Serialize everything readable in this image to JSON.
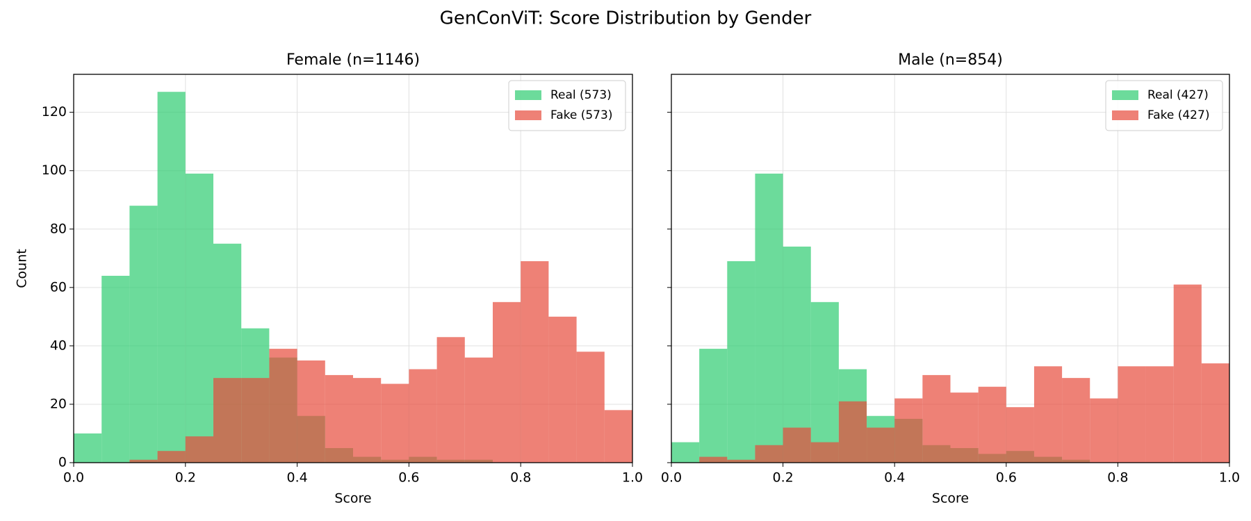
{
  "title": "GenConViT: Score Distribution by Gender",
  "chart_data": [
    {
      "type": "histogram",
      "title": "Female (n=1146)",
      "xlabel": "Score",
      "ylabel": "Count",
      "bins": [
        0,
        0.05,
        0.1,
        0.15,
        0.2,
        0.25,
        0.3,
        0.35,
        0.4,
        0.45,
        0.5,
        0.55,
        0.6,
        0.65,
        0.7,
        0.75,
        0.8,
        0.85,
        0.9,
        0.95,
        1
      ],
      "series": [
        {
          "name": "Real (573)",
          "color": "#2ecc71",
          "values": [
            10,
            64,
            88,
            127,
            99,
            75,
            46,
            36,
            16,
            5,
            2,
            1,
            2,
            1,
            1,
            0,
            0,
            0,
            0,
            0
          ]
        },
        {
          "name": "Fake (573)",
          "color": "#e74c3c",
          "values": [
            0,
            0,
            1,
            4,
            9,
            29,
            29,
            39,
            35,
            30,
            29,
            27,
            32,
            43,
            36,
            55,
            69,
            50,
            38,
            18
          ]
        }
      ],
      "xlim": [
        0,
        1
      ],
      "xticks": [
        {
          "value": 0,
          "label": "0.0"
        },
        0.2,
        0.4,
        0.6,
        0.8,
        {
          "value": 1,
          "label": "1.0"
        }
      ],
      "ylim": [
        0,
        133
      ],
      "yticks": [
        0,
        20,
        40,
        60,
        80,
        100,
        120
      ],
      "show_ytick_labels": true,
      "grid": true,
      "legend": "upper right",
      "opacity": 0.7
    },
    {
      "type": "histogram",
      "title": "Male (n=854)",
      "xlabel": "Score",
      "bins": [
        0,
        0.05,
        0.1,
        0.15,
        0.2,
        0.25,
        0.3,
        0.35,
        0.4,
        0.45,
        0.5,
        0.55,
        0.6,
        0.65,
        0.7,
        0.75,
        0.8,
        0.85,
        0.9,
        0.95,
        1
      ],
      "series": [
        {
          "name": "Real (427)",
          "color": "#2ecc71",
          "values": [
            7,
            39,
            69,
            99,
            74,
            55,
            32,
            16,
            15,
            6,
            5,
            3,
            4,
            2,
            1,
            0,
            0,
            0,
            0,
            0
          ]
        },
        {
          "name": "Fake (427)",
          "color": "#e74c3c",
          "values": [
            0,
            2,
            1,
            6,
            12,
            7,
            21,
            12,
            22,
            30,
            24,
            26,
            19,
            33,
            29,
            22,
            33,
            33,
            61,
            34
          ]
        }
      ],
      "xlim": [
        0,
        1
      ],
      "xticks": [
        {
          "value": 0,
          "label": "0.0"
        },
        0.2,
        0.4,
        0.6,
        0.8,
        {
          "value": 1,
          "label": "1.0"
        }
      ],
      "ylim": [
        0,
        133
      ],
      "yticks": [
        0,
        20,
        40,
        60,
        80,
        100,
        120
      ],
      "show_ytick_labels": false,
      "grid": true,
      "legend": "upper right",
      "opacity": 0.7
    }
  ]
}
